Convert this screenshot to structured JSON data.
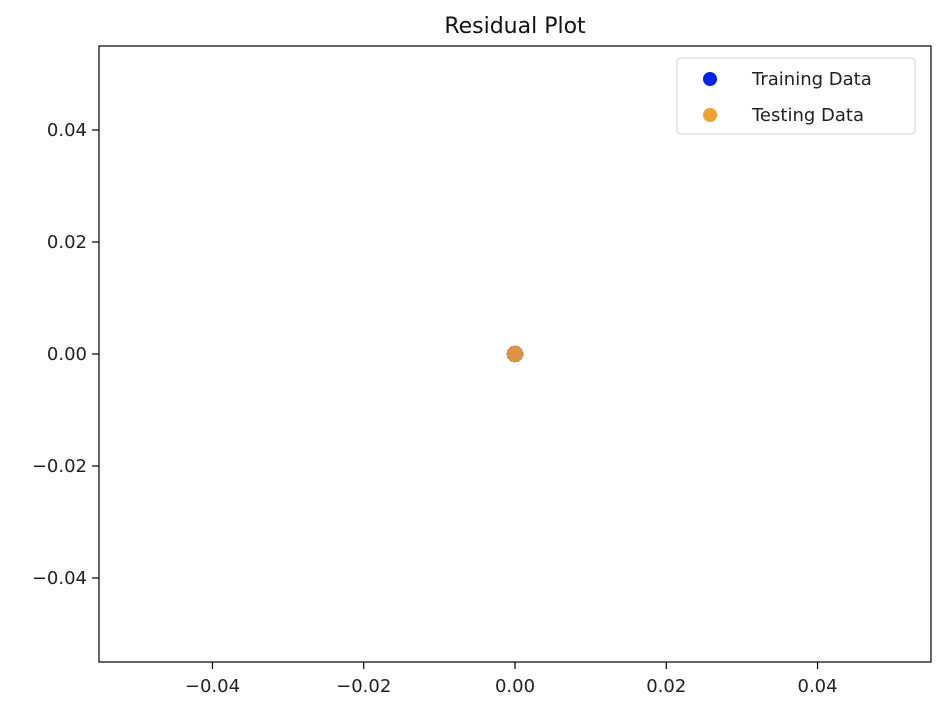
{
  "chart_data": {
    "type": "scatter",
    "title": "Residual Plot",
    "xlabel": "",
    "ylabel": "",
    "xlim": [
      -0.055,
      0.055
    ],
    "ylim": [
      -0.055,
      0.055
    ],
    "x_ticks": [
      -0.04,
      -0.02,
      0.0,
      0.02,
      0.04
    ],
    "x_tick_labels": [
      "−0.04",
      "−0.02",
      "0.00",
      "0.02",
      "0.04"
    ],
    "y_ticks": [
      0.04,
      0.02,
      0.0,
      -0.02,
      -0.04
    ],
    "y_tick_labels": [
      "0.04",
      "0.02",
      "0.00",
      "−0.02",
      "−0.04"
    ],
    "grid": false,
    "legend_position": "top-right",
    "series": [
      {
        "name": "Training Data",
        "color": "#0022ee",
        "points": [
          {
            "x": 0.0,
            "y": 0.0
          }
        ]
      },
      {
        "name": "Testing Data",
        "color": "#f5a030",
        "points": [
          {
            "x": 0.0,
            "y": 0.0
          }
        ]
      }
    ]
  }
}
